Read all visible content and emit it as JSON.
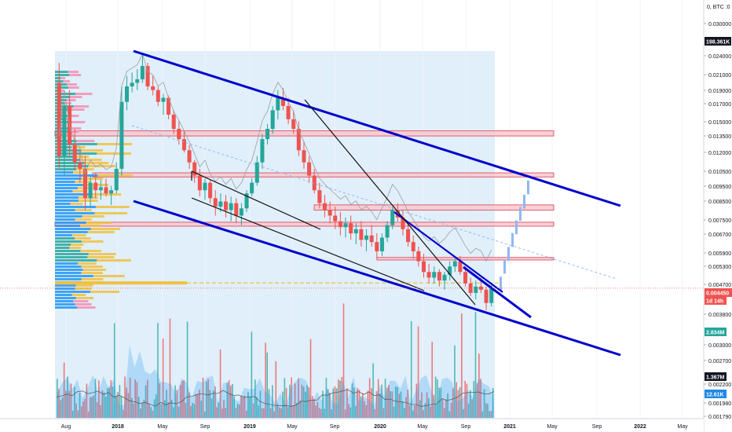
{
  "chart_data": {
    "type": "candlestick",
    "symbol_label": "0, BTC :0",
    "price_axis": {
      "scale": "log",
      "ticks": [
        "0.030000",
        "0.024000",
        "0.021000",
        "0.019000",
        "0.017000",
        "0.015000",
        "0.013500",
        "0.012000",
        "0.010500",
        "0.009500",
        "0.008500",
        "0.007500",
        "0.006700",
        "0.005900",
        "0.005300",
        "0.004700",
        "0.003800",
        "0.003000",
        "0.002700",
        "0.002200",
        "0.001980",
        "0.001790"
      ]
    },
    "time_axis": {
      "ticks": [
        "Aug",
        "2018",
        "May",
        "Sep",
        "2019",
        "May",
        "Sep",
        "2020",
        "May",
        "Sep",
        "2021",
        "May",
        "Sep",
        "2022",
        "May"
      ]
    },
    "badges": {
      "top_value": "198.361K",
      "current_price": "0.004450",
      "countdown": "1d 14h",
      "volume_1": "2.834M",
      "volume_2": "1.367M",
      "volume_3": "12.61K"
    },
    "colors": {
      "up": "#26a69a",
      "down": "#ef5350",
      "channel": "#0000cc",
      "zone_fill": "#f8c6cc",
      "zone_border": "#e05c6e",
      "volume_profile_up": "#2196f3",
      "volume_profile_value": "#f0c040",
      "highlight": "#d6eaf8",
      "projection": "#90b8f0"
    },
    "ohlc_weekly": [
      [
        0.0195,
        0.0225,
        0.0105,
        0.0115
      ],
      [
        0.0115,
        0.017,
        0.01,
        0.0165
      ],
      [
        0.0165,
        0.0185,
        0.0115,
        0.0125
      ],
      [
        0.0125,
        0.014,
        0.0104,
        0.011
      ],
      [
        0.011,
        0.012,
        0.0095,
        0.0105
      ],
      [
        0.0105,
        0.0115,
        0.0078,
        0.0085
      ],
      [
        0.0085,
        0.01,
        0.0079,
        0.0095
      ],
      [
        0.0095,
        0.0102,
        0.0085,
        0.009
      ],
      [
        0.009,
        0.0097,
        0.0084,
        0.0092
      ],
      [
        0.0092,
        0.0098,
        0.0086,
        0.0088
      ],
      [
        0.0088,
        0.0093,
        0.0081,
        0.009
      ],
      [
        0.009,
        0.011,
        0.0088,
        0.0105
      ],
      [
        0.0105,
        0.019,
        0.01,
        0.017
      ],
      [
        0.017,
        0.0205,
        0.016,
        0.019
      ],
      [
        0.019,
        0.021,
        0.0182,
        0.0195
      ],
      [
        0.0195,
        0.0215,
        0.0185,
        0.02
      ],
      [
        0.02,
        0.024,
        0.0195,
        0.022
      ],
      [
        0.022,
        0.0225,
        0.0185,
        0.019
      ],
      [
        0.019,
        0.0205,
        0.0178,
        0.0185
      ],
      [
        0.0185,
        0.019,
        0.0165,
        0.017
      ],
      [
        0.017,
        0.018,
        0.0155,
        0.0175
      ],
      [
        0.0175,
        0.0178,
        0.015,
        0.0155
      ],
      [
        0.0155,
        0.016,
        0.0135,
        0.014
      ],
      [
        0.014,
        0.0148,
        0.0125,
        0.013
      ],
      [
        0.013,
        0.0138,
        0.0118,
        0.012
      ],
      [
        0.012,
        0.0125,
        0.0105,
        0.011
      ],
      [
        0.011,
        0.0112,
        0.0095,
        0.01
      ],
      [
        0.01,
        0.0105,
        0.0086,
        0.009
      ],
      [
        0.009,
        0.0098,
        0.0084,
        0.0095
      ],
      [
        0.0095,
        0.0097,
        0.0082,
        0.0085
      ],
      [
        0.0085,
        0.009,
        0.0075,
        0.008
      ],
      [
        0.008,
        0.0088,
        0.0077,
        0.0083
      ],
      [
        0.0083,
        0.0087,
        0.0074,
        0.0078
      ],
      [
        0.0078,
        0.0086,
        0.0072,
        0.0082
      ],
      [
        0.0082,
        0.0085,
        0.0071,
        0.0075
      ],
      [
        0.0075,
        0.0082,
        0.007,
        0.0079
      ],
      [
        0.0079,
        0.009,
        0.0077,
        0.0088
      ],
      [
        0.0088,
        0.0098,
        0.0086,
        0.0095
      ],
      [
        0.0095,
        0.0115,
        0.0093,
        0.011
      ],
      [
        0.011,
        0.0135,
        0.0105,
        0.013
      ],
      [
        0.013,
        0.0145,
        0.0125,
        0.014
      ],
      [
        0.014,
        0.0165,
        0.0135,
        0.016
      ],
      [
        0.016,
        0.0185,
        0.015,
        0.0175
      ],
      [
        0.0175,
        0.0188,
        0.016,
        0.0165
      ],
      [
        0.0165,
        0.0175,
        0.0145,
        0.015
      ],
      [
        0.015,
        0.016,
        0.0135,
        0.014
      ],
      [
        0.014,
        0.0148,
        0.0115,
        0.012
      ],
      [
        0.012,
        0.0128,
        0.0105,
        0.011
      ],
      [
        0.011,
        0.0115,
        0.0095,
        0.01
      ],
      [
        0.01,
        0.0105,
        0.0088,
        0.009
      ],
      [
        0.009,
        0.0095,
        0.0079,
        0.0082
      ],
      [
        0.0082,
        0.0087,
        0.0074,
        0.0078
      ],
      [
        0.0078,
        0.0083,
        0.0071,
        0.0075
      ],
      [
        0.0075,
        0.008,
        0.0068,
        0.0072
      ],
      [
        0.0072,
        0.0077,
        0.0065,
        0.0069
      ],
      [
        0.0069,
        0.0074,
        0.0064,
        0.0071
      ],
      [
        0.0071,
        0.0075,
        0.0063,
        0.0066
      ],
      [
        0.0066,
        0.0071,
        0.0061,
        0.0068
      ],
      [
        0.0068,
        0.0072,
        0.006,
        0.0063
      ],
      [
        0.0063,
        0.0068,
        0.0058,
        0.0065
      ],
      [
        0.0065,
        0.007,
        0.006,
        0.0062
      ],
      [
        0.0062,
        0.0066,
        0.0055,
        0.0058
      ],
      [
        0.0058,
        0.0066,
        0.0056,
        0.0064
      ],
      [
        0.0064,
        0.0072,
        0.0062,
        0.007
      ],
      [
        0.007,
        0.008,
        0.0068,
        0.0078
      ],
      [
        0.0078,
        0.0082,
        0.0072,
        0.0074
      ],
      [
        0.0074,
        0.0078,
        0.0065,
        0.0068
      ],
      [
        0.0068,
        0.0071,
        0.006,
        0.0062
      ],
      [
        0.0062,
        0.0065,
        0.0055,
        0.0058
      ],
      [
        0.0058,
        0.006,
        0.0052,
        0.0054
      ],
      [
        0.0054,
        0.0057,
        0.0048,
        0.005
      ],
      [
        0.005,
        0.0053,
        0.0046,
        0.0048
      ],
      [
        0.0048,
        0.0052,
        0.0046,
        0.005
      ],
      [
        0.005,
        0.0051,
        0.0045,
        0.0047
      ],
      [
        0.0047,
        0.005,
        0.0044,
        0.0049
      ],
      [
        0.0049,
        0.0054,
        0.0047,
        0.0052
      ],
      [
        0.0052,
        0.0056,
        0.005,
        0.0054
      ],
      [
        0.0054,
        0.0056,
        0.0049,
        0.005
      ],
      [
        0.005,
        0.0052,
        0.0045,
        0.0046
      ],
      [
        0.0046,
        0.0048,
        0.0042,
        0.0043
      ],
      [
        0.0043,
        0.0047,
        0.0041,
        0.0045
      ],
      [
        0.0045,
        0.0048,
        0.0043,
        0.0044
      ],
      [
        0.0044,
        0.0045,
        0.0038,
        0.004
      ],
      [
        0.004,
        0.0046,
        0.0039,
        0.00445
      ]
    ]
  }
}
